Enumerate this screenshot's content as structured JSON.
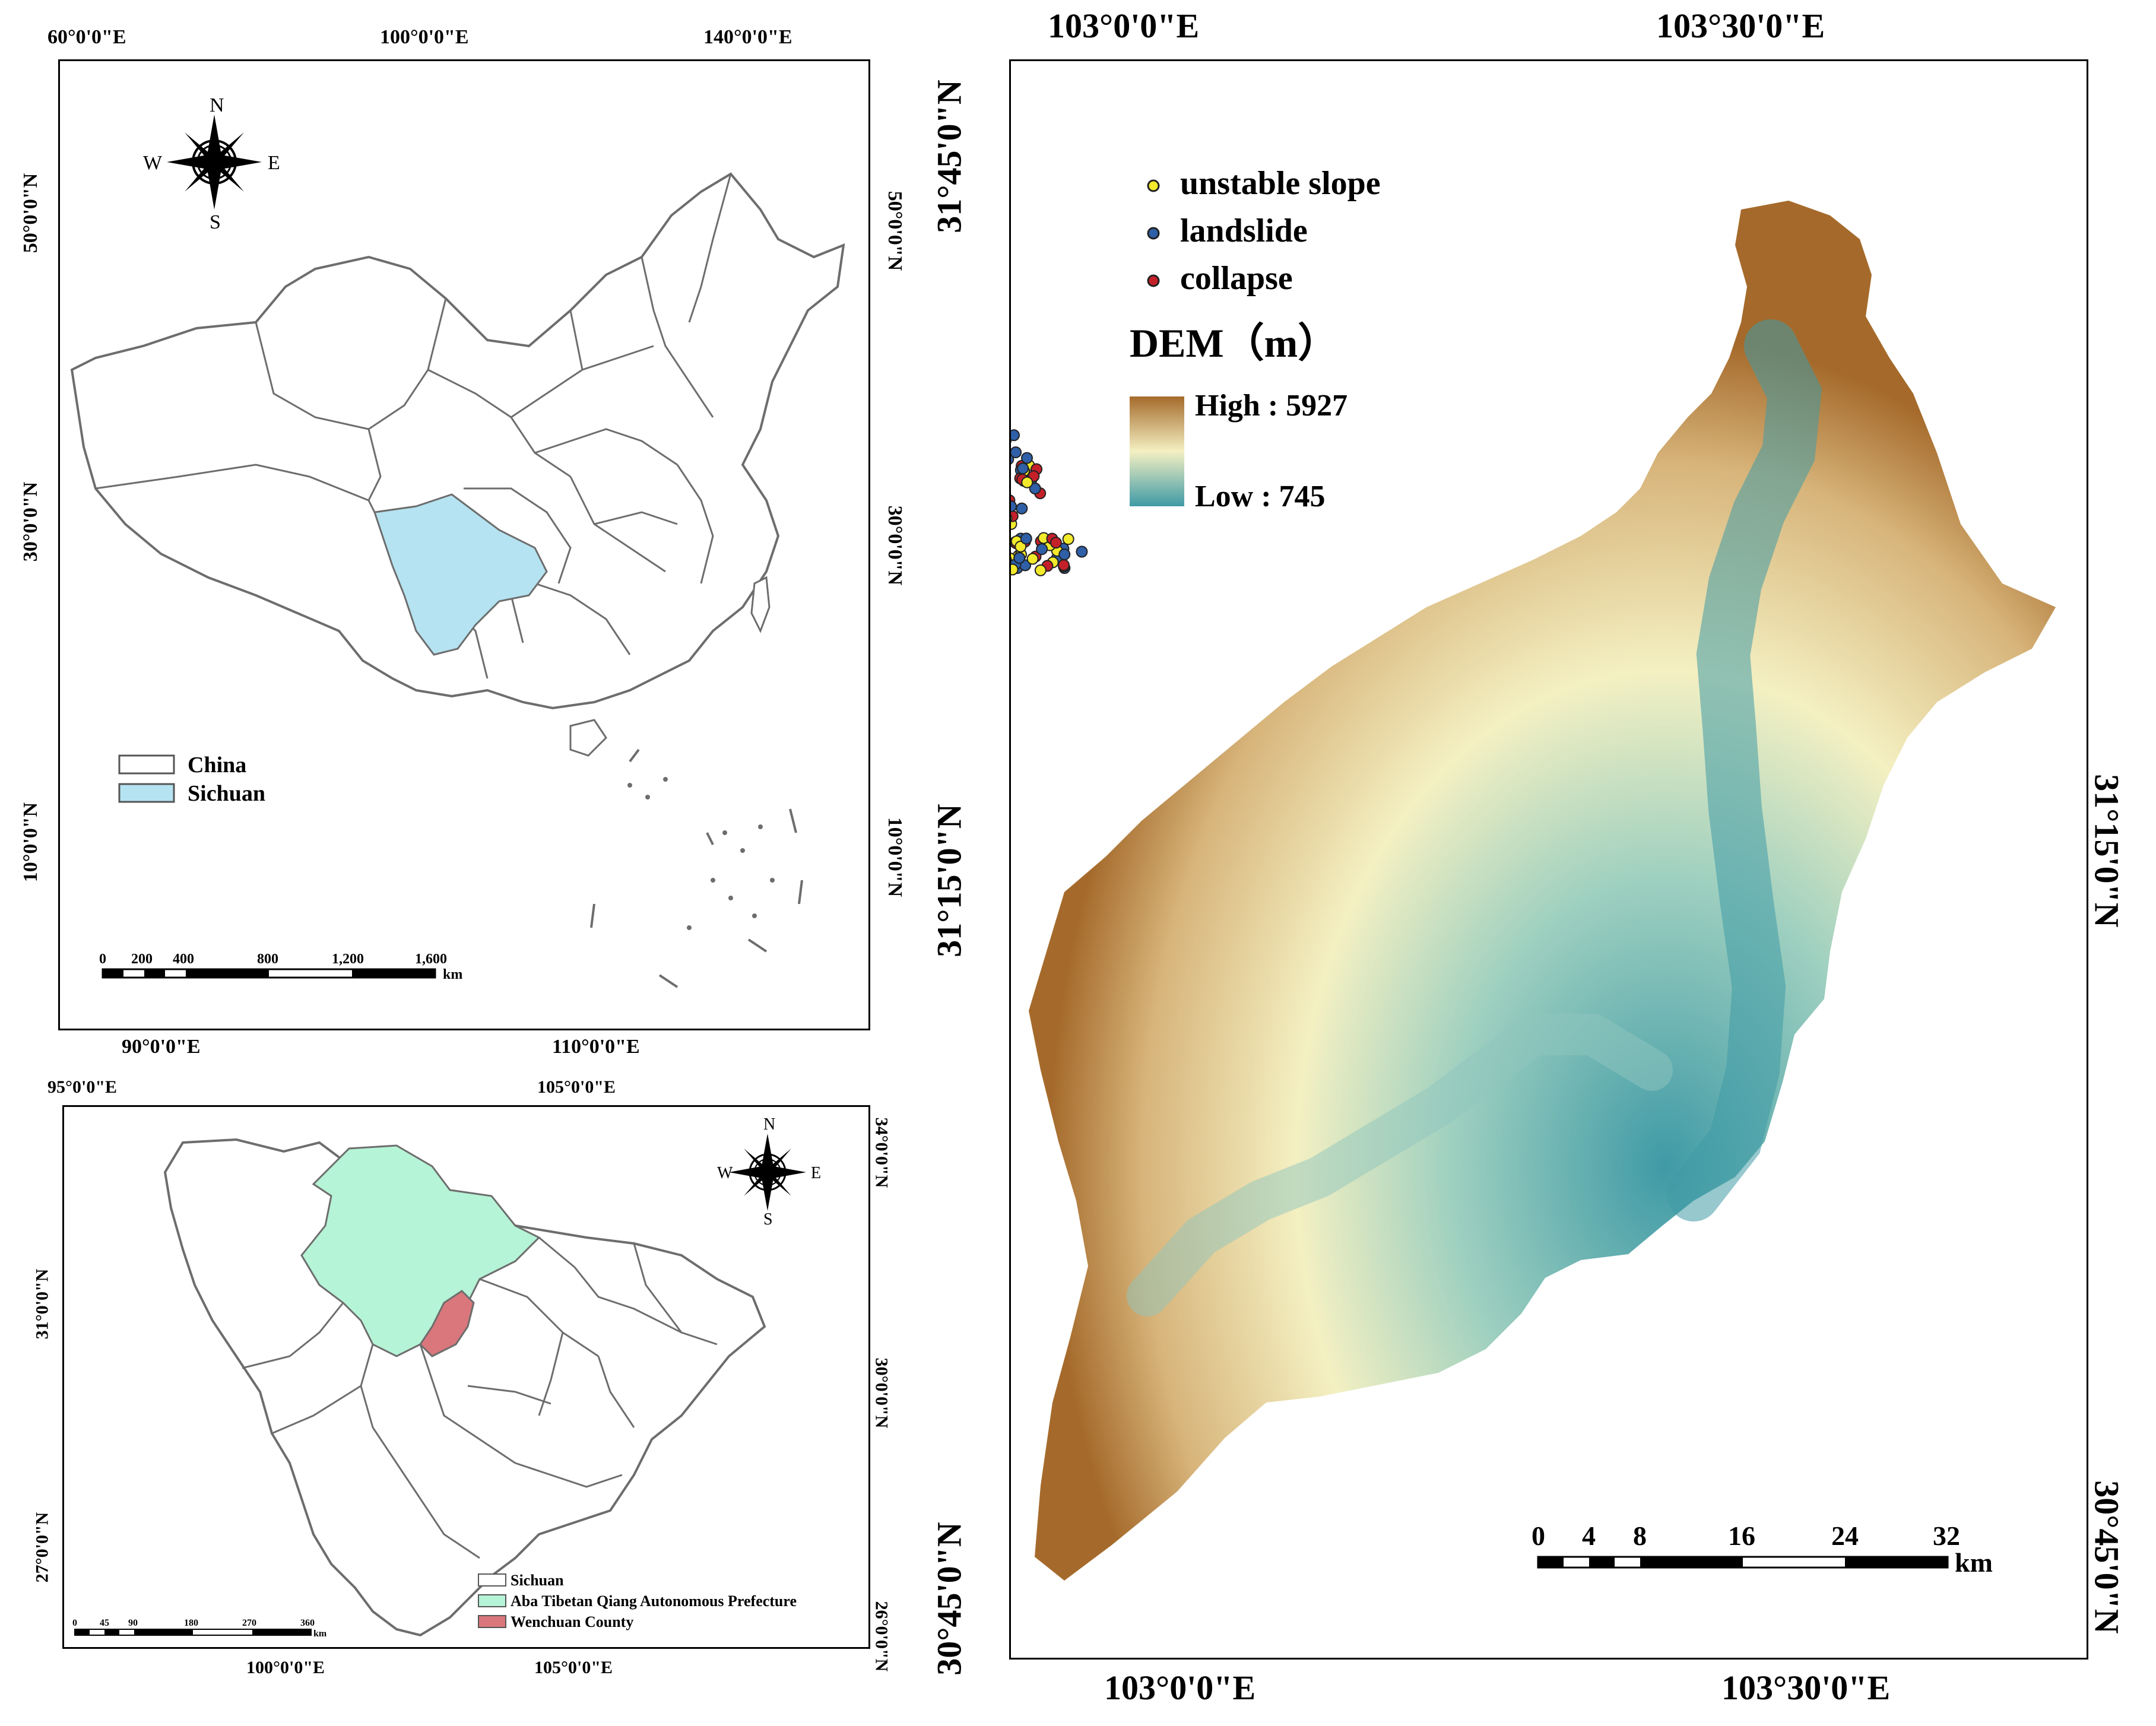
{
  "china_map": {
    "top_lon_labels": [
      "60°0'0\"E",
      "100°0'0\"E",
      "140°0'0\"E"
    ],
    "bottom_lon_labels": [
      "90°0'0\"E",
      "110°0'0\"E"
    ],
    "left_lat_labels": [
      "50°0'0\"N",
      "30°0'0\"N",
      "10°0'0\"N"
    ],
    "right_lat_labels": [
      "50°0'0\"N",
      "30°0'0\"N",
      "10°0'0\"N"
    ],
    "compass": {
      "n": "N",
      "s": "S",
      "e": "E",
      "w": "W"
    },
    "legend": [
      {
        "label": "China",
        "color": "#ffffff"
      },
      {
        "label": "Sichuan",
        "color": "#b5e3f1"
      }
    ],
    "scale": {
      "ticks": [
        "0",
        "200",
        "400",
        "800",
        "1,200",
        "1,600"
      ],
      "unit": "km"
    }
  },
  "sichuan_map": {
    "top_lon_labels": [
      "95°0'0\"E",
      "105°0'0\"E"
    ],
    "bottom_lon_labels": [
      "100°0'0\"E",
      "105°0'0\"E"
    ],
    "left_lat_labels": [
      "31°0'0\"N",
      "27°0'0\"N"
    ],
    "right_lat_labels": [
      "34°0'0\"N",
      "30°0'0\"N",
      "26°0'0\"N"
    ],
    "compass": {
      "n": "N",
      "s": "S",
      "e": "E",
      "w": "W"
    },
    "legend": [
      {
        "label": "Sichuan",
        "color": "#ffffff"
      },
      {
        "label": "Aba Tibetan Qiang Autonomous Prefecture",
        "color": "#b5f4d6"
      },
      {
        "label": "Wenchuan County",
        "color": "#d9777d"
      }
    ],
    "scale": {
      "ticks": [
        "0",
        "45",
        "90",
        "180",
        "270",
        "360"
      ],
      "unit": "km"
    }
  },
  "dem_map": {
    "top_lon_labels": [
      "103°0'0\"E",
      "103°30'0\"E"
    ],
    "bottom_lon_labels": [
      "103°0'0\"E",
      "103°30'0\"E"
    ],
    "left_lat_labels": [
      "31°45'0\"N",
      "31°15'0\"N",
      "30°45'0\"N"
    ],
    "right_lat_labels": [
      "31°15'0\"N",
      "30°45'0\"N"
    ],
    "legend": [
      {
        "label": "unstable slope",
        "color": "#f2ea2a"
      },
      {
        "label": "landslide",
        "color": "#2f5fa7"
      },
      {
        "label": "collapse",
        "color": "#c4202a"
      }
    ],
    "dem_title": "DEM（m）",
    "dem_high": "High : 5927",
    "dem_low": "Low : 745",
    "dem_colors": {
      "high": "#a56a2b",
      "mid": "#f4f0c2",
      "low": "#3f9aa6"
    },
    "scale": {
      "ticks": [
        "0",
        "4",
        "8",
        "16",
        "24",
        "32"
      ],
      "unit": "km"
    }
  }
}
